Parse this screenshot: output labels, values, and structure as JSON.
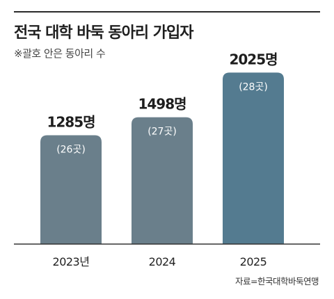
{
  "header": {
    "title": "전국 대학 바둑 동아리 가입자",
    "subtitle": "※괄호 안은 동아리 수"
  },
  "footer": {
    "source": "자료=한국대학바둑연맹"
  },
  "colors": {
    "bar_light": "#6a7f8b",
    "bar_dark": "#547b90",
    "axis": "#333333",
    "rule": "#2a2a2a"
  },
  "chart_data": {
    "type": "bar",
    "categories": [
      "2023년",
      "2024",
      "2025"
    ],
    "values": [
      1285,
      1498,
      2025
    ],
    "value_labels": [
      "1285명",
      "1498명",
      "2025명"
    ],
    "club_counts": [
      26,
      27,
      28
    ],
    "club_labels": [
      "(26곳)",
      "(27곳)",
      "(28곳)"
    ],
    "ylim": [
      0,
      2250
    ],
    "grid": false,
    "legend": "none"
  }
}
